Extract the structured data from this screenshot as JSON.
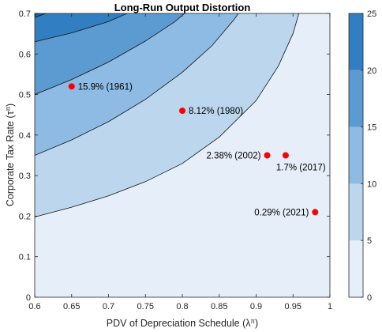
{
  "chart_data": {
    "type": "contour",
    "title": "Long-Run Output Distortion",
    "xlabel": "PDV of Depreciation Schedule (λ",
    "xlabel_sup": "π",
    "xlabel_close": ")",
    "ylabel": "Corporate Tax Rate (τ",
    "ylabel_sup": "π",
    "ylabel_close": ")",
    "xlim": [
      0.6,
      1.0
    ],
    "ylim": [
      0,
      0.7
    ],
    "xticks": [
      "0.6",
      "0.65",
      "0.7",
      "0.75",
      "0.8",
      "0.85",
      "0.9",
      "0.95",
      "1"
    ],
    "yticks": [
      "0",
      "0.1",
      "0.2",
      "0.3",
      "0.4",
      "0.5",
      "0.6",
      "0.7"
    ],
    "colorbar": {
      "range": [
        0,
        25
      ],
      "ticks": [
        "0",
        "5",
        "10",
        "15",
        "20",
        "25"
      ]
    },
    "contour_levels": [
      {
        "level": 0,
        "color": "#e6eff9"
      },
      {
        "level": 5,
        "color": "#bcd6ee"
      },
      {
        "level": 10,
        "color": "#8dbbe3"
      },
      {
        "level": 15,
        "color": "#5c9bd2"
      },
      {
        "level": 20,
        "color": "#317fc2"
      },
      {
        "level": 25,
        "color": "#0b62ad"
      }
    ],
    "boundaries": [
      {
        "level": 5,
        "points": [
          [
            0.6,
            0.198
          ],
          [
            0.65,
            0.222
          ],
          [
            0.7,
            0.25
          ],
          [
            0.75,
            0.285
          ],
          [
            0.8,
            0.33
          ],
          [
            0.85,
            0.395
          ],
          [
            0.9,
            0.485
          ],
          [
            0.93,
            0.57
          ],
          [
            0.95,
            0.65
          ],
          [
            0.958,
            0.7
          ]
        ]
      },
      {
        "level": 10,
        "points": [
          [
            0.6,
            0.35
          ],
          [
            0.65,
            0.388
          ],
          [
            0.7,
            0.433
          ],
          [
            0.75,
            0.488
          ],
          [
            0.8,
            0.555
          ],
          [
            0.84,
            0.62
          ],
          [
            0.87,
            0.685
          ],
          [
            0.876,
            0.7
          ]
        ]
      },
      {
        "level": 15,
        "points": [
          [
            0.6,
            0.5
          ],
          [
            0.65,
            0.537
          ],
          [
            0.7,
            0.58
          ],
          [
            0.75,
            0.632
          ],
          [
            0.79,
            0.68
          ],
          [
            0.803,
            0.7
          ]
        ]
      },
      {
        "level": 20,
        "points": [
          [
            0.6,
            0.63
          ],
          [
            0.65,
            0.652
          ],
          [
            0.7,
            0.68
          ],
          [
            0.725,
            0.7
          ]
        ]
      },
      {
        "level": 25,
        "points": [
          [
            0.6,
            0.69
          ],
          [
            0.615,
            0.7
          ]
        ]
      }
    ],
    "points": [
      {
        "x": 0.65,
        "y": 0.52,
        "label": "15.9% (1961)",
        "anchor": "right"
      },
      {
        "x": 0.8,
        "y": 0.46,
        "label": "8.12% (1980)",
        "anchor": "right"
      },
      {
        "x": 0.915,
        "y": 0.35,
        "label": "2.38% (2002)",
        "anchor": "left"
      },
      {
        "x": 0.94,
        "y": 0.35,
        "label": "1.7% (2017)",
        "anchor": "below"
      },
      {
        "x": 0.98,
        "y": 0.21,
        "label": "0.29% (2021)",
        "anchor": "left"
      }
    ],
    "point_color": "#ff0000"
  }
}
